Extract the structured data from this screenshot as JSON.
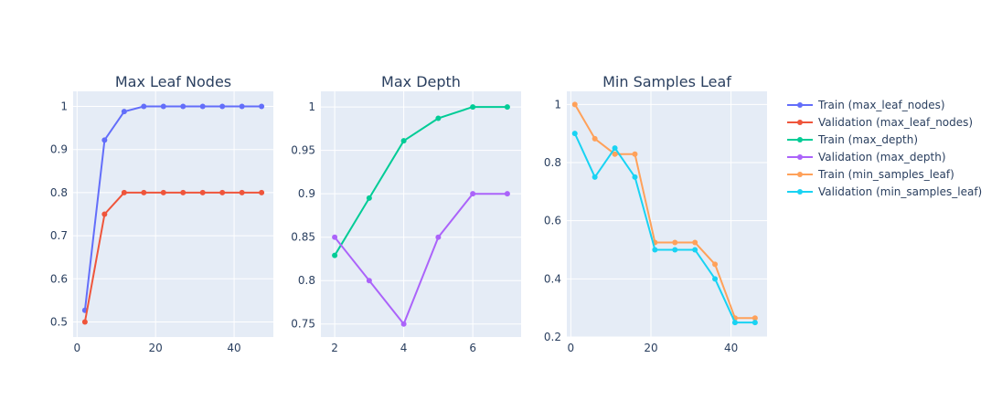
{
  "chart_data": [
    {
      "type": "line",
      "title": "Max Leaf Nodes",
      "xlabel": "",
      "ylabel": "",
      "xlim": [
        -1,
        50
      ],
      "ylim": [
        0.465,
        1.035
      ],
      "xticks": [
        0,
        20,
        40
      ],
      "yticks": [
        0.5,
        0.6,
        0.7,
        0.8,
        0.9,
        1
      ],
      "grid": true,
      "series": [
        {
          "name": "Train (max_leaf_nodes)",
          "color": "#636efa",
          "x": [
            2,
            7,
            12,
            17,
            22,
            27,
            32,
            37,
            42,
            47
          ],
          "y": [
            0.527,
            0.922,
            0.988,
            1,
            1,
            1,
            1,
            1,
            1,
            1
          ]
        },
        {
          "name": "Validation (max_leaf_nodes)",
          "color": "#ef553b",
          "x": [
            2,
            7,
            12,
            17,
            22,
            27,
            32,
            37,
            42,
            47
          ],
          "y": [
            0.5,
            0.75,
            0.8,
            0.8,
            0.8,
            0.8,
            0.8,
            0.8,
            0.8,
            0.8
          ]
        }
      ]
    },
    {
      "type": "line",
      "title": "Max Depth",
      "xlabel": "",
      "ylabel": "",
      "xlim": [
        1.6,
        7.4
      ],
      "ylim": [
        0.735,
        1.018
      ],
      "xticks": [
        2,
        4,
        6
      ],
      "yticks": [
        0.75,
        0.8,
        0.85,
        0.9,
        0.95,
        1
      ],
      "grid": true,
      "series": [
        {
          "name": "Train (max_depth)",
          "color": "#00cc96",
          "x": [
            2,
            3,
            4,
            5,
            6,
            7
          ],
          "y": [
            0.829,
            0.895,
            0.961,
            0.987,
            1,
            1
          ]
        },
        {
          "name": "Validation (max_depth)",
          "color": "#ab63fa",
          "x": [
            2,
            3,
            4,
            5,
            6,
            7
          ],
          "y": [
            0.85,
            0.8,
            0.75,
            0.85,
            0.9,
            0.9
          ]
        }
      ]
    },
    {
      "type": "line",
      "title": "Min Samples Leaf",
      "xlabel": "",
      "ylabel": "",
      "xlim": [
        -1,
        49
      ],
      "ylim": [
        0.2,
        1.045
      ],
      "xticks": [
        0,
        20,
        40
      ],
      "yticks": [
        0.2,
        0.4,
        0.6,
        0.8,
        1
      ],
      "grid": true,
      "series": [
        {
          "name": "Train (min_samples_leaf)",
          "color": "#ffa15a",
          "x": [
            1,
            6,
            11,
            16,
            21,
            26,
            31,
            36,
            41,
            46
          ],
          "y": [
            1,
            0.882,
            0.829,
            0.829,
            0.525,
            0.525,
            0.525,
            0.45,
            0.265,
            0.265
          ]
        },
        {
          "name": "Validation (min_samples_leaf)",
          "color": "#19d3f3",
          "x": [
            1,
            6,
            11,
            16,
            21,
            26,
            31,
            36,
            41,
            46
          ],
          "y": [
            0.9,
            0.75,
            0.85,
            0.75,
            0.5,
            0.5,
            0.5,
            0.4,
            0.25,
            0.25
          ]
        }
      ]
    }
  ],
  "legend": {
    "placement": "right",
    "items": [
      {
        "label": "Train (max_leaf_nodes)",
        "color": "#636efa"
      },
      {
        "label": "Validation (max_leaf_nodes)",
        "color": "#ef553b"
      },
      {
        "label": "Train (max_depth)",
        "color": "#00cc96"
      },
      {
        "label": "Validation (max_depth)",
        "color": "#ab63fa"
      },
      {
        "label": "Train (min_samples_leaf)",
        "color": "#ffa15a"
      },
      {
        "label": "Validation (min_samples_leaf)",
        "color": "#19d3f3"
      }
    ]
  },
  "style": {
    "plot_background": "#e5ecf6",
    "grid_color": "#ffffff",
    "text_color": "#2a3f5f"
  }
}
